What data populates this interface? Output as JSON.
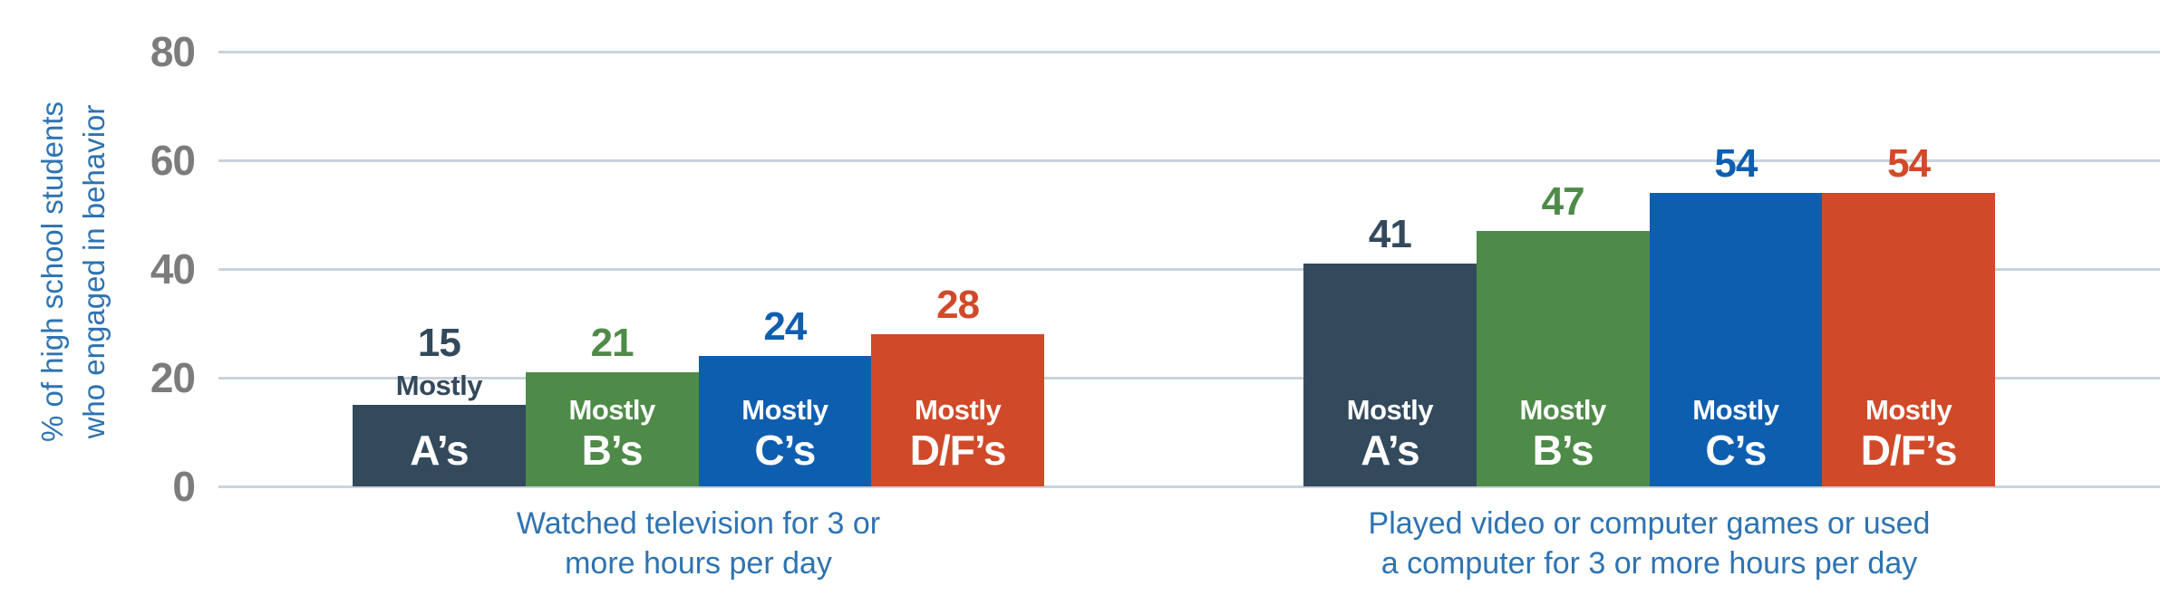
{
  "chart_data": {
    "type": "bar",
    "title": "",
    "ylabel_lines": [
      "% of high school students",
      "who engaged in behavior"
    ],
    "ylabel_text": "% of high school students who engaged in behavior",
    "ylim": [
      0,
      80
    ],
    "yticks": [
      0,
      20,
      40,
      60,
      80
    ],
    "grid": true,
    "legend_position": "none",
    "inner_word": "Mostly",
    "grades": [
      "A’s",
      "B’s",
      "C’s",
      "D/F’s"
    ],
    "categories": [
      "Mostly A’s",
      "Mostly B’s",
      "Mostly C’s",
      "Mostly D/F’s"
    ],
    "bar_colors": [
      "#33495C",
      "#4E8B48",
      "#0E5EB0",
      "#D04A29"
    ],
    "groups": [
      {
        "caption_lines": [
          "Watched television for 3 or",
          "more hours per day"
        ],
        "caption_text": "Watched television for 3 or more hours per day",
        "values": [
          15,
          21,
          24,
          28
        ]
      },
      {
        "caption_lines": [
          "Played video or computer games or used",
          "a computer for 3 or more hours per day"
        ],
        "caption_text": "Played video or computer games or used a computer for 3 or more hours per day",
        "values": [
          41,
          47,
          54,
          54
        ]
      }
    ]
  },
  "colors": {
    "grid": "#C9D3DB",
    "tick_text": "#7C7C7C",
    "axis_title_text": "#2E73B1",
    "caption_text": "#2E73B1",
    "bar_inner_text": "#FFFFFF",
    "background": "#FFFFFF"
  }
}
